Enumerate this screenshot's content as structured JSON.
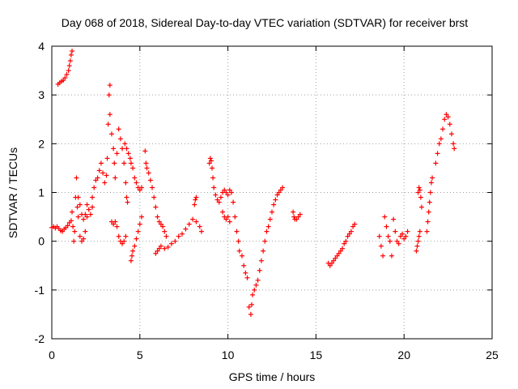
{
  "chart_data": {
    "type": "scatter",
    "title": "Day 068 of 2018, Sidereal Day-to-day VTEC variation (SDTVAR) for receiver brst",
    "xlabel": "GPS time / hours",
    "ylabel": "SDTVAR / TECUs",
    "xlim": [
      0,
      25
    ],
    "ylim": [
      -2,
      4
    ],
    "xticks": [
      0,
      5,
      10,
      15,
      20,
      25
    ],
    "yticks": [
      -2,
      -1,
      0,
      1,
      2,
      3,
      4
    ],
    "grid": true,
    "marker": "+",
    "color": "#ff0000",
    "series": [
      {
        "name": "SDTVAR",
        "points": [
          [
            0.0,
            0.28
          ],
          [
            0.1,
            0.3
          ],
          [
            0.2,
            0.27
          ],
          [
            0.3,
            0.3
          ],
          [
            0.4,
            0.26
          ],
          [
            0.5,
            0.22
          ],
          [
            0.6,
            0.2
          ],
          [
            0.7,
            0.25
          ],
          [
            0.8,
            0.28
          ],
          [
            0.9,
            0.32
          ],
          [
            1.0,
            0.38
          ],
          [
            1.1,
            0.42
          ],
          [
            0.35,
            3.22
          ],
          [
            0.45,
            3.25
          ],
          [
            0.55,
            3.28
          ],
          [
            0.65,
            3.3
          ],
          [
            0.75,
            3.35
          ],
          [
            0.85,
            3.42
          ],
          [
            0.95,
            3.5
          ],
          [
            1.0,
            3.6
          ],
          [
            1.05,
            3.7
          ],
          [
            1.1,
            3.82
          ],
          [
            1.15,
            3.9
          ],
          [
            1.15,
            0.6
          ],
          [
            1.2,
            0.3
          ],
          [
            1.25,
            0.0
          ],
          [
            1.3,
            0.2
          ],
          [
            1.35,
            0.9
          ],
          [
            1.4,
            1.3
          ],
          [
            1.45,
            0.7
          ],
          [
            1.5,
            0.5
          ],
          [
            1.6,
            0.1
          ],
          [
            1.7,
            0.0
          ],
          [
            1.8,
            0.05
          ],
          [
            1.9,
            0.2
          ],
          [
            2.0,
            0.5
          ],
          [
            1.5,
            0.9
          ],
          [
            1.6,
            0.75
          ],
          [
            1.7,
            0.55
          ],
          [
            1.8,
            0.45
          ],
          [
            1.9,
            0.55
          ],
          [
            2.0,
            0.75
          ],
          [
            2.1,
            0.65
          ],
          [
            2.2,
            0.55
          ],
          [
            2.3,
            0.7
          ],
          [
            2.3,
            0.9
          ],
          [
            2.4,
            1.1
          ],
          [
            2.5,
            1.25
          ],
          [
            2.6,
            1.3
          ],
          [
            2.7,
            1.45
          ],
          [
            2.8,
            1.6
          ],
          [
            2.9,
            1.4
          ],
          [
            3.0,
            1.2
          ],
          [
            3.1,
            1.35
          ],
          [
            3.15,
            1.7
          ],
          [
            3.2,
            2.4
          ],
          [
            3.25,
            3.0
          ],
          [
            3.3,
            3.2
          ],
          [
            3.3,
            2.6
          ],
          [
            3.4,
            2.2
          ],
          [
            3.5,
            1.9
          ],
          [
            3.55,
            1.6
          ],
          [
            3.6,
            1.3
          ],
          [
            3.7,
            1.8
          ],
          [
            3.8,
            2.3
          ],
          [
            3.9,
            2.1
          ],
          [
            4.0,
            1.9
          ],
          [
            4.1,
            1.6
          ],
          [
            4.2,
            1.2
          ],
          [
            4.25,
            0.9
          ],
          [
            4.3,
            0.8
          ],
          [
            3.4,
            0.4
          ],
          [
            3.5,
            0.35
          ],
          [
            3.6,
            0.4
          ],
          [
            3.7,
            0.3
          ],
          [
            3.8,
            0.1
          ],
          [
            3.9,
            0.0
          ],
          [
            4.0,
            -0.05
          ],
          [
            4.1,
            0.0
          ],
          [
            4.2,
            0.1
          ],
          [
            4.15,
            2.0
          ],
          [
            4.25,
            1.9
          ],
          [
            4.35,
            1.8
          ],
          [
            4.45,
            1.7
          ],
          [
            4.5,
            1.6
          ],
          [
            4.6,
            1.5
          ],
          [
            4.7,
            1.3
          ],
          [
            4.8,
            1.2
          ],
          [
            4.9,
            1.1
          ],
          [
            5.0,
            1.05
          ],
          [
            5.1,
            1.1
          ],
          [
            4.5,
            -0.4
          ],
          [
            4.55,
            -0.3
          ],
          [
            4.6,
            -0.2
          ],
          [
            4.7,
            -0.1
          ],
          [
            4.8,
            0.05
          ],
          [
            4.9,
            0.2
          ],
          [
            5.0,
            0.35
          ],
          [
            5.1,
            0.5
          ],
          [
            5.3,
            1.85
          ],
          [
            5.35,
            1.6
          ],
          [
            5.4,
            1.5
          ],
          [
            5.5,
            1.4
          ],
          [
            5.6,
            1.25
          ],
          [
            5.7,
            1.1
          ],
          [
            5.8,
            0.9
          ],
          [
            5.9,
            0.7
          ],
          [
            6.0,
            0.5
          ],
          [
            6.1,
            0.4
          ],
          [
            6.2,
            0.35
          ],
          [
            6.3,
            0.3
          ],
          [
            6.4,
            0.2
          ],
          [
            6.5,
            0.1
          ],
          [
            5.9,
            -0.25
          ],
          [
            6.0,
            -0.2
          ],
          [
            6.1,
            -0.15
          ],
          [
            6.2,
            -0.1
          ],
          [
            6.4,
            -0.15
          ],
          [
            6.6,
            -0.12
          ],
          [
            6.8,
            -0.05
          ],
          [
            7.0,
            0.0
          ],
          [
            7.2,
            0.1
          ],
          [
            7.4,
            0.15
          ],
          [
            7.6,
            0.25
          ],
          [
            7.8,
            0.35
          ],
          [
            8.0,
            0.45
          ],
          [
            8.2,
            0.4
          ],
          [
            8.4,
            0.3
          ],
          [
            8.5,
            0.2
          ],
          [
            8.1,
            0.75
          ],
          [
            8.15,
            0.85
          ],
          [
            8.2,
            0.9
          ],
          [
            8.95,
            1.6
          ],
          [
            9.0,
            1.7
          ],
          [
            9.05,
            1.65
          ],
          [
            9.1,
            1.5
          ],
          [
            9.15,
            1.3
          ],
          [
            9.2,
            1.1
          ],
          [
            9.3,
            0.95
          ],
          [
            9.4,
            0.85
          ],
          [
            9.5,
            0.8
          ],
          [
            9.6,
            0.9
          ],
          [
            9.7,
            0.6
          ],
          [
            9.8,
            0.5
          ],
          [
            9.9,
            0.45
          ],
          [
            10.0,
            0.5
          ],
          [
            10.1,
            0.4
          ],
          [
            9.7,
            1.0
          ],
          [
            9.8,
            1.05
          ],
          [
            9.9,
            1.0
          ],
          [
            10.0,
            0.95
          ],
          [
            10.1,
            1.05
          ],
          [
            10.2,
            1.0
          ],
          [
            10.3,
            0.8
          ],
          [
            10.4,
            0.5
          ],
          [
            10.5,
            0.2
          ],
          [
            10.6,
            0.0
          ],
          [
            10.65,
            -0.2
          ],
          [
            10.8,
            -0.3
          ],
          [
            10.9,
            -0.5
          ],
          [
            11.0,
            -0.65
          ],
          [
            11.1,
            -0.75
          ],
          [
            11.2,
            -1.35
          ],
          [
            11.3,
            -1.5
          ],
          [
            11.35,
            -1.3
          ],
          [
            11.4,
            -1.1
          ],
          [
            11.5,
            -1.0
          ],
          [
            11.6,
            -0.9
          ],
          [
            11.7,
            -0.8
          ],
          [
            11.8,
            -0.6
          ],
          [
            11.9,
            -0.4
          ],
          [
            12.0,
            -0.2
          ],
          [
            12.1,
            0.0
          ],
          [
            12.2,
            0.2
          ],
          [
            12.3,
            0.3
          ],
          [
            12.4,
            0.45
          ],
          [
            12.5,
            0.6
          ],
          [
            12.6,
            0.75
          ],
          [
            12.7,
            0.85
          ],
          [
            12.8,
            0.95
          ],
          [
            12.9,
            1.0
          ],
          [
            13.0,
            1.05
          ],
          [
            13.1,
            1.1
          ],
          [
            13.7,
            0.6
          ],
          [
            13.75,
            0.5
          ],
          [
            13.8,
            0.45
          ],
          [
            13.9,
            0.45
          ],
          [
            14.0,
            0.5
          ],
          [
            14.1,
            0.55
          ],
          [
            15.7,
            -0.45
          ],
          [
            15.8,
            -0.5
          ],
          [
            15.9,
            -0.45
          ],
          [
            16.0,
            -0.4
          ],
          [
            16.1,
            -0.35
          ],
          [
            16.2,
            -0.3
          ],
          [
            16.3,
            -0.25
          ],
          [
            16.4,
            -0.2
          ],
          [
            16.5,
            -0.15
          ],
          [
            16.6,
            -0.05
          ],
          [
            16.7,
            0.0
          ],
          [
            16.8,
            0.1
          ],
          [
            16.9,
            0.15
          ],
          [
            17.0,
            0.2
          ],
          [
            17.1,
            0.3
          ],
          [
            17.2,
            0.35
          ],
          [
            18.6,
            0.1
          ],
          [
            18.7,
            -0.1
          ],
          [
            18.8,
            -0.3
          ],
          [
            18.9,
            0.5
          ],
          [
            19.0,
            0.3
          ],
          [
            19.1,
            0.1
          ],
          [
            19.2,
            0.0
          ],
          [
            19.3,
            -0.3
          ],
          [
            19.4,
            0.45
          ],
          [
            19.5,
            0.2
          ],
          [
            19.6,
            0.0
          ],
          [
            19.7,
            -0.05
          ],
          [
            19.8,
            0.1
          ],
          [
            19.9,
            0.15
          ],
          [
            20.0,
            0.05
          ],
          [
            20.1,
            0.1
          ],
          [
            20.2,
            0.2
          ],
          [
            20.7,
            -0.2
          ],
          [
            20.75,
            -0.1
          ],
          [
            20.8,
            0.0
          ],
          [
            20.85,
            0.1
          ],
          [
            20.9,
            0.2
          ],
          [
            20.8,
            1.0
          ],
          [
            20.85,
            1.1
          ],
          [
            20.9,
            1.05
          ],
          [
            20.95,
            0.9
          ],
          [
            21.0,
            0.7
          ],
          [
            21.3,
            0.2
          ],
          [
            21.35,
            0.4
          ],
          [
            21.4,
            0.6
          ],
          [
            21.45,
            0.8
          ],
          [
            21.5,
            1.0
          ],
          [
            21.55,
            1.2
          ],
          [
            21.6,
            1.3
          ],
          [
            21.8,
            1.6
          ],
          [
            21.9,
            1.8
          ],
          [
            22.0,
            2.0
          ],
          [
            22.1,
            2.1
          ],
          [
            22.2,
            2.3
          ],
          [
            22.3,
            2.5
          ],
          [
            22.4,
            2.6
          ],
          [
            22.5,
            2.55
          ],
          [
            22.6,
            2.4
          ],
          [
            22.7,
            2.2
          ],
          [
            22.8,
            2.0
          ],
          [
            22.85,
            1.9
          ]
        ]
      }
    ]
  }
}
